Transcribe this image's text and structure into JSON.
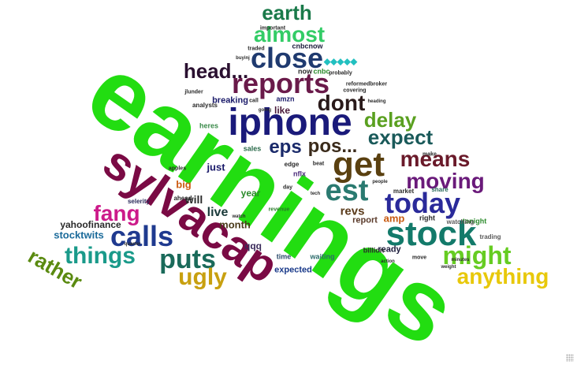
{
  "words": {
    "earnings": "earnings",
    "sylvacap": "sylvacap",
    "iphone": "iphone",
    "stock": "stock",
    "get": "get",
    "reports": "reports",
    "close": "close",
    "calls": "calls",
    "puts": "puts",
    "today": "today",
    "might": "might",
    "est": "est",
    "things": "things",
    "anything": "anything",
    "almost": "almost",
    "earth": "earth",
    "dont": "dont",
    "delay": "delay",
    "expect": "expect",
    "means": "means",
    "moving": "moving",
    "fang": "fang",
    "ugly": "ugly",
    "rather": "rather",
    "eps": "eps",
    "pos": "pos...",
    "head": "head...",
    "live": "live",
    "diamonds": "◆◆◆◆◆",
    "stocktwits": "stocktwits",
    "yahoofinance": "yahoofinance",
    "revs": "revs",
    "month": "month",
    "will": "will",
    "big": "big",
    "just": "just",
    "year": "year",
    "breaking": "breaking",
    "like": "like",
    "amp": "amp",
    "qqq": "qqq",
    "report": "report",
    "ready": "ready",
    "expected": "expected",
    "waiting": "waiting",
    "time": "time",
    "billion": "billion",
    "cnbcnow": "cnbcnow",
    "cnbc": "cnbc",
    "now": "now",
    "amzn": "amzn",
    "heres": "heres",
    "sales": "sales",
    "nflx": "nflx",
    "edge": "edge",
    "ahead": "ahead",
    "analysts": "analysts",
    "selerity": "selerity",
    "tonight": "tonight",
    "watching": "watching",
    "trading": "trading",
    "right": "right",
    "market": "market",
    "share": "share",
    "apples": "apples",
    "revenue": "revenue",
    "traded": "traded",
    "important": "important",
    "probably": "probably",
    "covering": "covering",
    "reformedbroker": "reformedbroker",
    "going": "going",
    "call": "call",
    "jlunder": "jlunder",
    "buyinj": "buyinj",
    "make": "make",
    "people": "people",
    "move": "move",
    "action": "action",
    "day": "day",
    "beat": "beat",
    "tech": "tech",
    "watch": "watch",
    "minutes": "minutes",
    "heading": "heading",
    "weight": "weight",
    "quarter": "quarter"
  }
}
